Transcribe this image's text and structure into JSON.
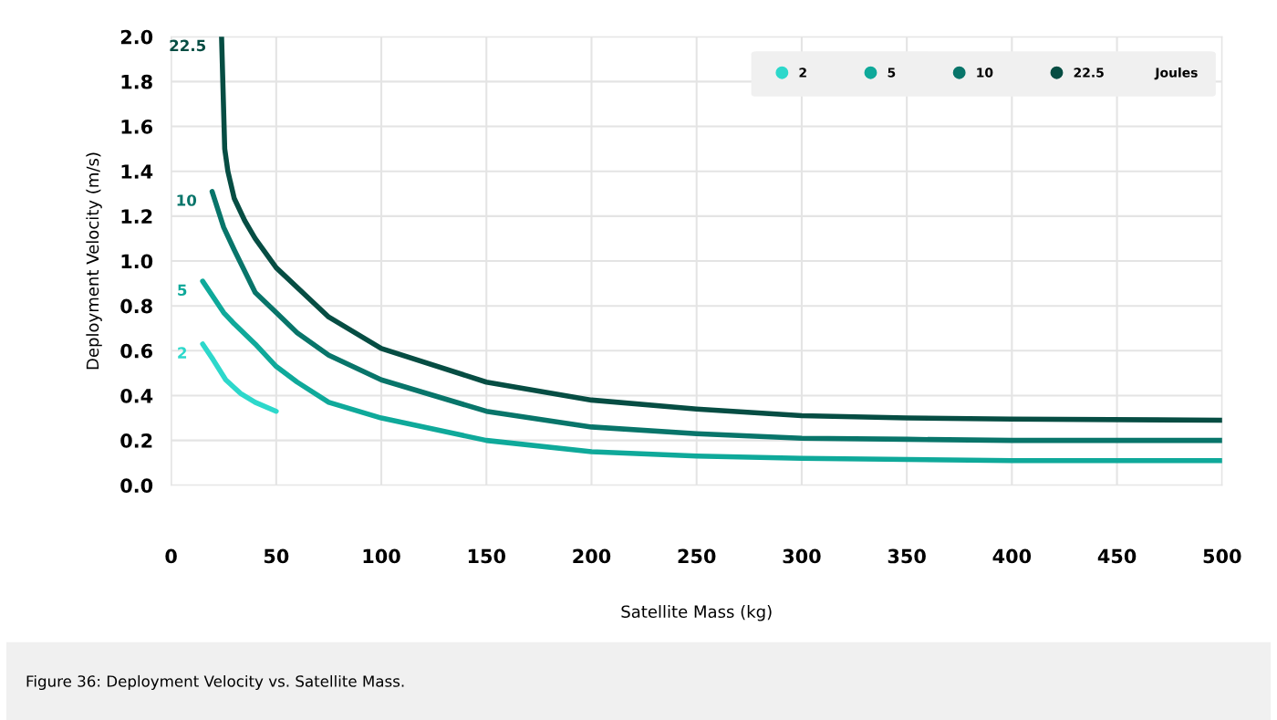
{
  "chart_data": {
    "type": "line",
    "xlabel": "Satellite Mass (kg)",
    "ylabel": "Deployment Velocity (m/s)",
    "legend_title": "Joules",
    "annotations": [
      "Figure 36: Deployment Velocity vs. Satellite Mass."
    ],
    "series": [
      {
        "name": "2",
        "color": "#2dd8cb",
        "x": [
          15,
          20,
          26,
          33,
          40,
          50
        ],
        "values": [
          0.63,
          0.56,
          0.47,
          0.41,
          0.37,
          0.33
        ]
      },
      {
        "name": "5",
        "color": "#0fa99a",
        "x": [
          15,
          25,
          30,
          40,
          50,
          60,
          75,
          100,
          150,
          200,
          250,
          300,
          400,
          500
        ],
        "values": [
          0.91,
          0.77,
          0.72,
          0.63,
          0.53,
          0.46,
          0.37,
          0.3,
          0.2,
          0.15,
          0.13,
          0.12,
          0.11,
          0.11
        ]
      },
      {
        "name": "10",
        "color": "#08756a",
        "x": [
          19.5,
          25,
          30,
          40,
          50,
          60,
          75,
          100,
          150,
          200,
          250,
          300,
          350,
          400,
          500
        ],
        "values": [
          1.31,
          1.15,
          1.05,
          0.86,
          0.77,
          0.68,
          0.58,
          0.47,
          0.33,
          0.26,
          0.23,
          0.21,
          0.205,
          0.2,
          0.2
        ]
      },
      {
        "name": "22.5",
        "color": "#064d43",
        "x": [
          24,
          25.5,
          27,
          30,
          35,
          40,
          50,
          75,
          100,
          150,
          200,
          250,
          300,
          350,
          400,
          500
        ],
        "values": [
          2.0,
          1.5,
          1.4,
          1.28,
          1.18,
          1.1,
          0.97,
          0.75,
          0.61,
          0.46,
          0.38,
          0.34,
          0.31,
          0.3,
          0.295,
          0.29
        ]
      }
    ],
    "xlim": [
      0,
      500
    ],
    "xticks": [
      0,
      50,
      100,
      150,
      200,
      250,
      300,
      350,
      400,
      450,
      500
    ],
    "ylim": [
      0,
      2
    ],
    "yticks": [
      {
        "value": 0,
        "label": "0.0"
      },
      {
        "value": 0.2,
        "label": "0.2"
      },
      {
        "value": 0.4,
        "label": "0.4"
      },
      {
        "value": 0.6,
        "label": "0.6"
      },
      {
        "value": 0.8,
        "label": "0.8"
      },
      {
        "value": 1,
        "label": "1.0"
      },
      {
        "value": 1.2,
        "label": "1.2"
      },
      {
        "value": 1.4,
        "label": "1.4"
      },
      {
        "value": 1.6,
        "label": "1.6"
      },
      {
        "value": 1.8,
        "label": "1.8"
      },
      {
        "value": 2,
        "label": "2.0"
      }
    ],
    "grid": true,
    "legend": "top right",
    "marker": "none",
    "line_style": "solid"
  }
}
